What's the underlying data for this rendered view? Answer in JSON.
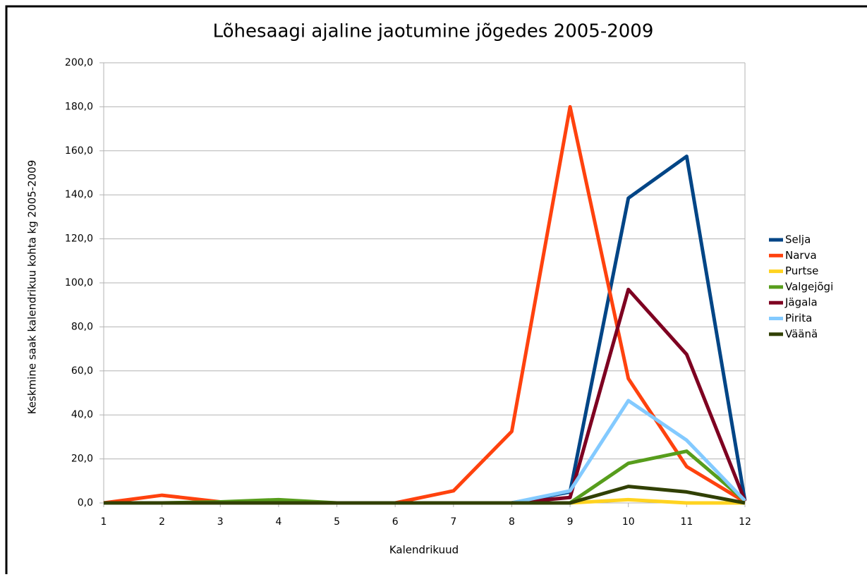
{
  "chart_data": {
    "type": "line",
    "title": "Lõhesaagi ajaline jaotumine jõgedes 2005-2009",
    "x_label": "Kalendrikuud",
    "y_label": "Keskmine saak kalendrikuu kohta kg 2005-2009",
    "x": [
      1,
      2,
      3,
      4,
      5,
      6,
      7,
      8,
      9,
      10,
      11,
      12
    ],
    "xlim": [
      1,
      12
    ],
    "xticks": [
      1,
      2,
      3,
      4,
      5,
      6,
      7,
      8,
      9,
      10,
      11,
      12
    ],
    "ylim": [
      0,
      200
    ],
    "yticks": [
      {
        "value": 0,
        "label": "0,0"
      },
      {
        "value": 20,
        "label": "20,0"
      },
      {
        "value": 40,
        "label": "40,0"
      },
      {
        "value": 60,
        "label": "60,0"
      },
      {
        "value": 80,
        "label": "80,0"
      },
      {
        "value": 100,
        "label": "100,0"
      },
      {
        "value": 120,
        "label": "120,0"
      },
      {
        "value": 140,
        "label": "140,0"
      },
      {
        "value": 160,
        "label": "160,0"
      },
      {
        "value": 180,
        "label": "180,0"
      },
      {
        "value": 200,
        "label": "200,0"
      }
    ],
    "grid": true,
    "legend": "right",
    "series": [
      {
        "name": "Selja",
        "color": "#004586",
        "values": [
          0,
          0,
          0,
          0,
          0,
          0,
          0,
          0,
          5,
          138.5,
          157.5,
          1
        ]
      },
      {
        "name": "Narva",
        "color": "#ff420e",
        "values": [
          0,
          3.5,
          0.5,
          0.3,
          0,
          0,
          5.5,
          32.5,
          180,
          56.5,
          16.5,
          0.5
        ]
      },
      {
        "name": "Purtse",
        "color": "#ffd320",
        "values": [
          0,
          0,
          0,
          0,
          0,
          0,
          0,
          0,
          0,
          1.5,
          0,
          0
        ]
      },
      {
        "name": "Valgejõgi",
        "color": "#579d1c",
        "values": [
          0,
          0,
          0.5,
          1.5,
          0,
          0,
          0,
          0,
          0,
          18,
          23.5,
          1
        ]
      },
      {
        "name": "Jägala",
        "color": "#7e0021",
        "values": [
          0,
          0,
          0,
          0,
          0,
          0,
          0,
          0,
          2.5,
          97,
          67.5,
          1
        ]
      },
      {
        "name": "Pirita",
        "color": "#83caff",
        "values": [
          0,
          0,
          0,
          0,
          0,
          0,
          0,
          0,
          5.5,
          46.5,
          28.5,
          1
        ]
      },
      {
        "name": "Väänä",
        "color": "#314004",
        "values": [
          0,
          0,
          0,
          0,
          0,
          0,
          0,
          0,
          0,
          7.5,
          5,
          0
        ]
      }
    ]
  }
}
